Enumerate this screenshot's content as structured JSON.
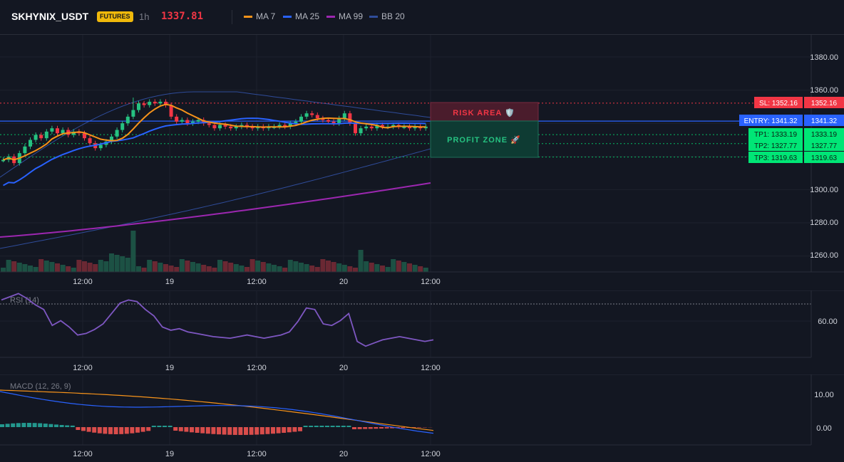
{
  "header": {
    "symbol": "SKHYNIX_USDT",
    "badge": "FUTURES",
    "timeframe": "1h",
    "last_price": "1337.81",
    "legend": [
      {
        "label": "MA 7",
        "color": "#f7931a"
      },
      {
        "label": "MA 25",
        "color": "#2962ff"
      },
      {
        "label": "MA 99",
        "color": "#9c27b0"
      },
      {
        "label": "BB 20",
        "color": "#2f4c9a"
      }
    ]
  },
  "levels": {
    "sl": {
      "label": "SL: 1352.16",
      "value": "1352.16"
    },
    "entry": {
      "label": "ENTRY: 1341.32",
      "value": "1341.32"
    },
    "tp1": {
      "label": "TP1: 1333.19",
      "value": "1333.19"
    },
    "tp2": {
      "label": "TP2: 1327.77",
      "value": "1327.77"
    },
    "tp3": {
      "label": "TP3: 1319.63",
      "value": "1319.63"
    }
  },
  "zones": {
    "risk": "RISK AREA 🛡️",
    "profit": "PROFIT ZONE 🚀"
  },
  "price_axis": [
    "1380.00",
    "1360.00",
    "1300.00",
    "1280.00",
    "1260.00"
  ],
  "time_axis": [
    "12:00",
    "19",
    "12:00",
    "20",
    "12:00"
  ],
  "rsi": {
    "label": "RSI (14)",
    "axis": [
      "60.00"
    ]
  },
  "macd": {
    "label": "MACD (12, 26, 9)",
    "axis": [
      "10.00",
      "0.00"
    ]
  },
  "colors": {
    "bg": "#131722",
    "up": "#26c281",
    "down": "#f23645",
    "ma7": "#f7931a",
    "ma25": "#2962ff",
    "ma99": "#9c27b0",
    "bb": "#2f4c9a",
    "rsi": "#7e57c2",
    "entry": "#2962ff",
    "sl": "#f23645",
    "tp": "#00e676"
  }
}
